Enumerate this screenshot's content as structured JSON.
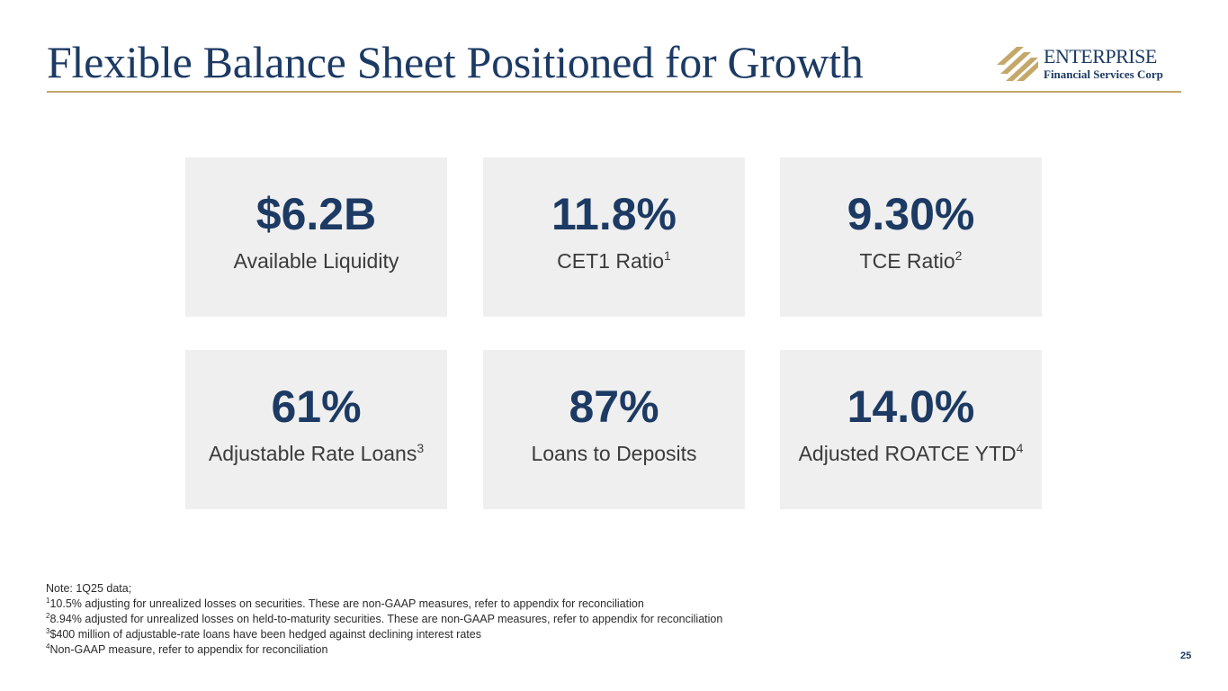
{
  "slide": {
    "title": "Flexible Balance Sheet Positioned for Growth",
    "page_number": "25"
  },
  "logo": {
    "name": "ENTERPRISE",
    "subtitle": "Financial Services Corp"
  },
  "tiles": [
    {
      "value": "$6.2B",
      "label": "Available Liquidity",
      "footnote": ""
    },
    {
      "value": "11.8%",
      "label": "CET1 Ratio",
      "footnote": "1"
    },
    {
      "value": "9.30%",
      "label": "TCE Ratio",
      "footnote": "2"
    },
    {
      "value": "61%",
      "label": "Adjustable Rate Loans",
      "footnote": "3"
    },
    {
      "value": "87%",
      "label": "Loans to Deposits",
      "footnote": ""
    },
    {
      "value": "14.0%",
      "label": "Adjusted ROATCE YTD",
      "footnote": "4"
    }
  ],
  "notes": {
    "intro": "Note: 1Q25 data;",
    "items": [
      {
        "marker": "1",
        "text": "10.5% adjusting for unrealized losses on securities. These are non-GAAP measures, refer to appendix for reconciliation"
      },
      {
        "marker": "2",
        "text": "8.94% adjusted for unrealized losses on held-to-maturity securities. These are non-GAAP measures, refer to appendix for reconciliation"
      },
      {
        "marker": "3",
        "text": "$400 million of adjustable-rate loans have been hedged against declining interest rates"
      },
      {
        "marker": "4",
        "text": "Non-GAAP measure, refer to appendix for reconciliation"
      }
    ]
  },
  "colors": {
    "title": "#1c3a63",
    "accent_gold": "#c3a86a",
    "tile_background": "#efefef"
  }
}
